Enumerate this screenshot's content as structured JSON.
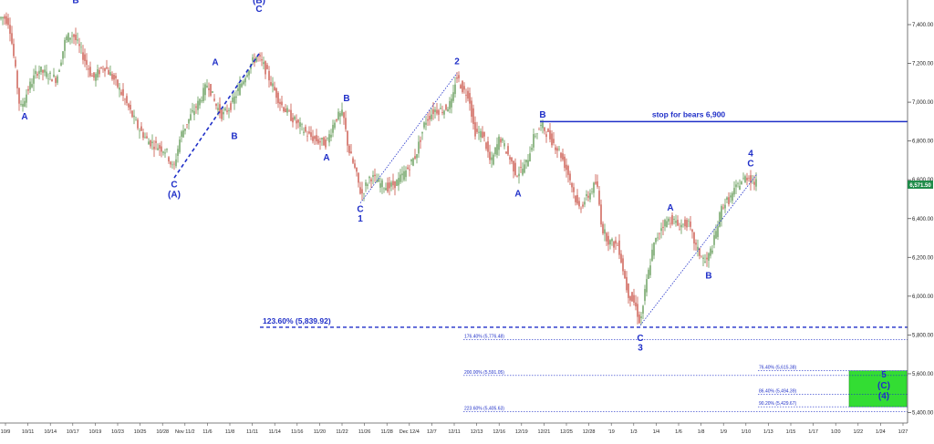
{
  "chart_data": {
    "type": "candlestick",
    "ylim": [
      5300,
      7560
    ],
    "y_ticks": [
      5400,
      5600,
      5800,
      6000,
      6200,
      6400,
      6600,
      6800,
      7000,
      7200,
      7400
    ],
    "y_tick_labels": [
      "5,400.00",
      "5,600.00",
      "5,800.00",
      "6,000.00",
      "6,200.00",
      "6,400.00",
      "6,600.00",
      "6,800.00",
      "7,000.00",
      "7,200.00",
      "7,400.00"
    ],
    "x_tick_labels": [
      "10/9",
      "10/11",
      "10/14",
      "10/17",
      "10/19",
      "10/23",
      "10/25",
      "10/28",
      "Nov 11/2",
      "11/6",
      "11/8",
      "11/11",
      "11/14",
      "11/16",
      "11/20",
      "11/22",
      "11/26",
      "11/28",
      "Dec 12/4",
      "12/7",
      "12/11",
      "12/13",
      "12/16",
      "12/19",
      "12/21",
      "12/25",
      "12/28",
      "'19",
      "1/3",
      "1/4",
      "1/6",
      "1/8",
      "1/9",
      "1/10",
      "1/13",
      "1/15",
      "1/17",
      "1/20",
      "1/22",
      "1/24",
      "1/27"
    ],
    "price_path": [
      [
        0,
        7430
      ],
      [
        6,
        7440
      ],
      [
        12,
        7410
      ],
      [
        18,
        7200
      ],
      [
        24,
        6960
      ],
      [
        34,
        7080
      ],
      [
        44,
        7170
      ],
      [
        54,
        7140
      ],
      [
        64,
        7120
      ],
      [
        74,
        7330
      ],
      [
        82,
        7350
      ],
      [
        92,
        7250
      ],
      [
        104,
        7120
      ],
      [
        116,
        7190
      ],
      [
        128,
        7110
      ],
      [
        140,
        7000
      ],
      [
        152,
        6880
      ],
      [
        164,
        6800
      ],
      [
        176,
        6770
      ],
      [
        184,
        6750
      ],
      [
        192,
        6650
      ],
      [
        200,
        6830
      ],
      [
        210,
        6920
      ],
      [
        220,
        7000
      ],
      [
        230,
        7100
      ],
      [
        238,
        6990
      ],
      [
        246,
        6930
      ],
      [
        256,
        6990
      ],
      [
        266,
        7090
      ],
      [
        276,
        7190
      ],
      [
        284,
        7240
      ],
      [
        292,
        7180
      ],
      [
        300,
        7090
      ],
      [
        310,
        6990
      ],
      [
        320,
        6930
      ],
      [
        330,
        6880
      ],
      [
        340,
        6830
      ],
      [
        350,
        6800
      ],
      [
        360,
        6790
      ],
      [
        370,
        6920
      ],
      [
        378,
        6940
      ],
      [
        384,
        6760
      ],
      [
        392,
        6640
      ],
      [
        398,
        6520
      ],
      [
        408,
        6620
      ],
      [
        418,
        6580
      ],
      [
        428,
        6560
      ],
      [
        438,
        6590
      ],
      [
        448,
        6650
      ],
      [
        458,
        6730
      ],
      [
        468,
        6900
      ],
      [
        478,
        6960
      ],
      [
        488,
        6960
      ],
      [
        498,
        7000
      ],
      [
        502,
        7140
      ],
      [
        510,
        7060
      ],
      [
        516,
        7040
      ],
      [
        522,
        6850
      ],
      [
        532,
        6830
      ],
      [
        540,
        6680
      ],
      [
        550,
        6820
      ],
      [
        560,
        6720
      ],
      [
        568,
        6630
      ],
      [
        578,
        6670
      ],
      [
        588,
        6830
      ],
      [
        596,
        6880
      ],
      [
        606,
        6810
      ],
      [
        616,
        6740
      ],
      [
        626,
        6620
      ],
      [
        636,
        6450
      ],
      [
        646,
        6510
      ],
      [
        656,
        6590
      ],
      [
        662,
        6350
      ],
      [
        670,
        6280
      ],
      [
        680,
        6260
      ],
      [
        690,
        6020
      ],
      [
        698,
        5960
      ],
      [
        704,
        5860
      ],
      [
        710,
        6050
      ],
      [
        718,
        6250
      ],
      [
        728,
        6370
      ],
      [
        738,
        6400
      ],
      [
        746,
        6360
      ],
      [
        756,
        6380
      ],
      [
        766,
        6240
      ],
      [
        776,
        6170
      ],
      [
        784,
        6270
      ],
      [
        794,
        6470
      ],
      [
        802,
        6500
      ],
      [
        812,
        6580
      ],
      [
        822,
        6620
      ],
      [
        830,
        6580
      ]
    ],
    "last_price": "6,571.50",
    "waves": [
      {
        "text": "A",
        "x": 27,
        "y": 6910
      },
      {
        "text": "B",
        "x": 83,
        "y": 7510
      },
      {
        "text": "A",
        "x": 236,
        "y": 7190
      },
      {
        "text": "B",
        "x": 257,
        "y": 6810
      },
      {
        "text": "(B)",
        "x": 284,
        "y": 7510
      },
      {
        "text": "C",
        "x": 284,
        "y": 7465
      },
      {
        "text": "C",
        "x": 191,
        "y": 6560
      },
      {
        "text": "(A)",
        "x": 191,
        "y": 6510
      },
      {
        "text": "B",
        "x": 380,
        "y": 7005
      },
      {
        "text": "A",
        "x": 358,
        "y": 6700
      },
      {
        "text": "C",
        "x": 395,
        "y": 6435
      },
      {
        "text": "1",
        "x": 395,
        "y": 6385
      },
      {
        "text": "2",
        "x": 501,
        "y": 7195
      },
      {
        "text": "B",
        "x": 595,
        "y": 6920
      },
      {
        "text": "A",
        "x": 568,
        "y": 6515
      },
      {
        "text": "A",
        "x": 735,
        "y": 6440
      },
      {
        "text": "B",
        "x": 777,
        "y": 6090
      },
      {
        "text": "C",
        "x": 702,
        "y": 5770
      },
      {
        "text": "3",
        "x": 702,
        "y": 5720
      },
      {
        "text": "4",
        "x": 823,
        "y": 6720
      },
      {
        "text": "C",
        "x": 823,
        "y": 6670
      },
      {
        "text": "5",
        "x": 969,
        "y": 5580
      },
      {
        "text": "(C)",
        "x": 969,
        "y": 5525
      },
      {
        "text": "(4)",
        "x": 969,
        "y": 5470
      }
    ],
    "trendlines": [
      {
        "style": "dashed-bold",
        "from": [
          191,
          6610
        ],
        "to": [
          284,
          7250
        ]
      },
      {
        "style": "dotted",
        "from": [
          395,
          6480
        ],
        "to": [
          501,
          7150
        ]
      },
      {
        "style": "dotted",
        "from": [
          702,
          5850
        ],
        "to": [
          830,
          6630
        ]
      }
    ],
    "resistance": {
      "label": "stop for bears 6,900",
      "value": 6900,
      "x_from": 592
    },
    "fib_main": {
      "label": "123.60% (5,839.92)",
      "value": 5839.92
    },
    "fib_lines": [
      {
        "label": "176.40% (5,776.48)",
        "value": 5776.48
      },
      {
        "label": "200.00% (5,591.05)",
        "value": 5591.05
      },
      {
        "label": "223.60% (5,405.63)",
        "value": 5405.63
      },
      {
        "label": "76.40% (5,615.38)",
        "value": 5615.38
      },
      {
        "label": "86.40% (5,494.39)",
        "value": 5494.39
      },
      {
        "label": "90.20% (5,429.67)",
        "value": 5429.67
      }
    ],
    "target_zone": {
      "from": 5430,
      "to": 5615
    },
    "colors": {
      "up": "#4a8a3c",
      "down": "#c0392b",
      "wave": "#1f2fc8",
      "zone": "#33dd33",
      "price_tag": "#1f8c4a"
    }
  }
}
